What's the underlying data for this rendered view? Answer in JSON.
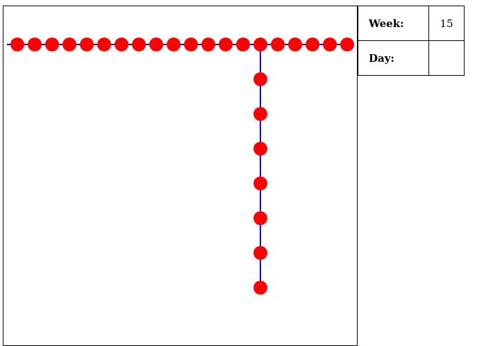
{
  "info_panel": {
    "week_label": "Week:",
    "week_value": "15",
    "day_label": "Day:",
    "day_value": ""
  },
  "colors": {
    "line": "#0000ff",
    "dot": "#ff0000"
  },
  "grid": {
    "horizontal_count": 20,
    "vertical_count": 7,
    "junction_index": 14
  }
}
